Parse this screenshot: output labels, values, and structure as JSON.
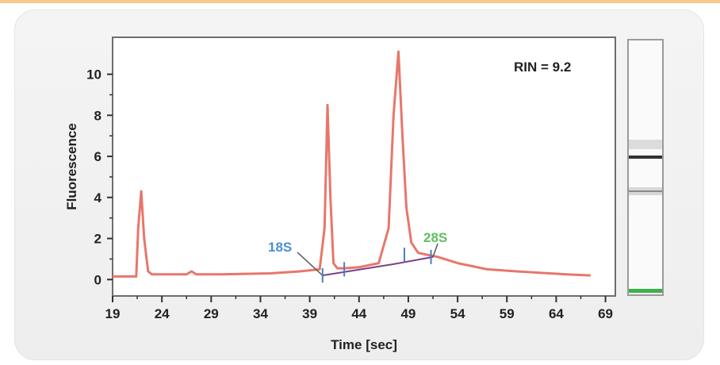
{
  "chart_data": {
    "type": "line",
    "title": "",
    "xlabel": "Time [sec]",
    "ylabel": "Fluorescence",
    "xlim": [
      19,
      70
    ],
    "ylim": [
      -0.8,
      11.8
    ],
    "x_ticks": [
      19,
      24,
      29,
      34,
      39,
      44,
      49,
      54,
      59,
      64,
      69
    ],
    "y_ticks": [
      0,
      2,
      4,
      6,
      8,
      10
    ],
    "grid": false,
    "annotations": [
      {
        "text": "RIN = 9.2",
        "color": "#222222"
      },
      {
        "text": "18S",
        "color": "#4a8fd0",
        "x": 40.3,
        "y": 0.2
      },
      {
        "text": "28S",
        "color": "#5fbf5f",
        "x": 51.5,
        "y": 1.1
      }
    ],
    "series": [
      {
        "color": "#e8766a",
        "x": [
          19,
          21.4,
          21.6,
          21.9,
          22.2,
          22.6,
          23,
          25,
          26.5,
          27,
          27.5,
          30,
          35,
          38,
          40,
          40.5,
          40.8,
          41.1,
          41.4,
          41.8,
          42.5,
          44,
          46,
          47,
          47.5,
          48,
          48.4,
          48.8,
          49.3,
          50,
          51,
          52,
          54,
          57,
          60,
          65,
          67.5
        ],
        "y": [
          0.15,
          0.15,
          2.5,
          4.3,
          2.0,
          0.4,
          0.25,
          0.25,
          0.25,
          0.4,
          0.25,
          0.25,
          0.3,
          0.4,
          0.5,
          2.5,
          8.5,
          4.0,
          0.8,
          0.55,
          0.55,
          0.6,
          0.8,
          2.5,
          8.0,
          11.1,
          7.0,
          3.5,
          1.8,
          1.3,
          1.2,
          1.1,
          0.8,
          0.5,
          0.4,
          0.25,
          0.2
        ]
      }
    ],
    "gel_lane": {
      "band_color": "#333333",
      "marker_color": "#3db04b"
    }
  }
}
